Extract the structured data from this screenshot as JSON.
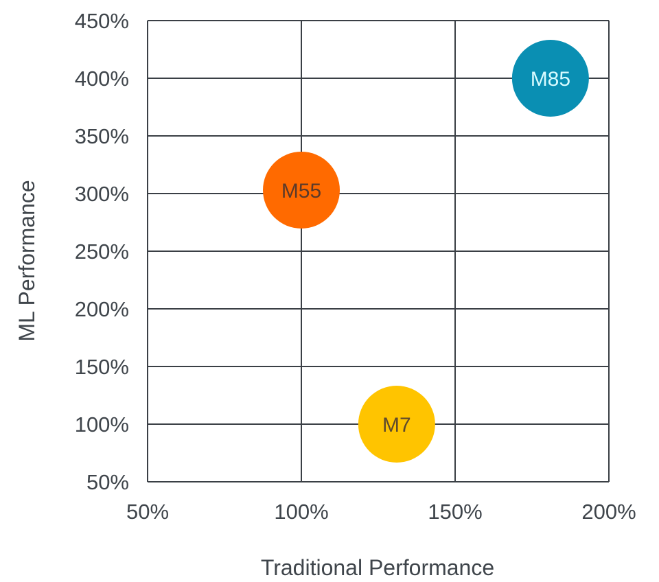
{
  "chart_data": {
    "type": "scatter",
    "title": "",
    "xlabel": "Traditional Performance",
    "ylabel": "ML Performance",
    "xlim": [
      50,
      200
    ],
    "ylim": [
      50,
      450
    ],
    "x_ticks": [
      50,
      100,
      150,
      200
    ],
    "y_ticks": [
      50,
      100,
      150,
      200,
      250,
      300,
      350,
      400,
      450
    ],
    "x_tick_labels": [
      "50%",
      "100%",
      "150%",
      "200%"
    ],
    "y_tick_labels": [
      "50%",
      "100%",
      "150%",
      "200%",
      "250%",
      "300%",
      "350%",
      "400%",
      "450%"
    ],
    "grid": true,
    "points": [
      {
        "label": "M85",
        "x": 181,
        "y": 400,
        "color": "#0a8fb3",
        "label_color": "#d8fbff"
      },
      {
        "label": "M55",
        "x": 100,
        "y": 303,
        "color": "#ff6a00",
        "label_color": "#5b3a2a"
      },
      {
        "label": "M7",
        "x": 131,
        "y": 100,
        "color": "#ffc400",
        "label_color": "#5e4a2d"
      }
    ]
  }
}
